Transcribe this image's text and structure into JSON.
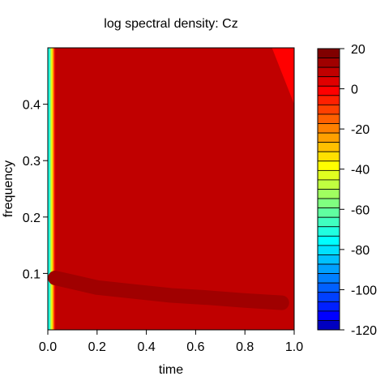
{
  "chart_data": {
    "type": "heatmap",
    "title": "log spectral density: Cz",
    "xlabel": "time",
    "ylabel": "frequency",
    "xlim": [
      0.0,
      1.0
    ],
    "ylim": [
      0.0,
      0.5
    ],
    "x_ticks": [
      0.0,
      0.2,
      0.4,
      0.6,
      0.8,
      1.0
    ],
    "x_tick_labels": [
      "0.0",
      "0.2",
      "0.4",
      "0.6",
      "0.8",
      "1.0"
    ],
    "y_ticks": [
      0.1,
      0.2,
      0.3,
      0.4
    ],
    "y_tick_labels": [
      "0.1",
      "0.2",
      "0.3",
      "0.4"
    ],
    "grid": false,
    "colorbar": {
      "placement": "right",
      "range": [
        -120,
        20
      ],
      "step": 5,
      "tick_values": [
        20,
        0,
        -20,
        -40,
        -60,
        -80,
        -100,
        -120
      ],
      "tick_labels": [
        "20",
        "0",
        "-20",
        "-40",
        "-60",
        "-80",
        "-100",
        "-120"
      ],
      "colors_top_to_bottom": [
        "#800000",
        "#a00000",
        "#c00000",
        "#e00000",
        "#ff0000",
        "#ff2000",
        "#ff4000",
        "#ff6000",
        "#ff8000",
        "#ffa000",
        "#ffc000",
        "#ffe000",
        "#ffff00",
        "#e0ff20",
        "#c0ff40",
        "#a0ff60",
        "#80ff80",
        "#60ffa0",
        "#40ffc0",
        "#20ffe0",
        "#00ffff",
        "#00e0ff",
        "#00c0ff",
        "#00a0ff",
        "#0080ff",
        "#0060ff",
        "#0040ff",
        "#0020ff",
        "#0000ff",
        "#0000c0"
      ]
    },
    "field": {
      "background_level": 5,
      "background_color": "#c00000",
      "low_time_edge": {
        "time_range": [
          0.0,
          0.03
        ],
        "colors_left_to_right": [
          "#20ffe0",
          "#00ffff",
          "#40ffc0",
          "#80ff80",
          "#c0ff40",
          "#ffff00",
          "#ffc000",
          "#ff8000",
          "#ff4000",
          "#e00000"
        ]
      },
      "ridge": {
        "level": 10,
        "color": "#a00000",
        "points": [
          {
            "time": 0.03,
            "frequency": 0.092
          },
          {
            "time": 0.1,
            "frequency": 0.085
          },
          {
            "time": 0.2,
            "frequency": 0.075
          },
          {
            "time": 0.35,
            "frequency": 0.068
          },
          {
            "time": 0.5,
            "frequency": 0.061
          },
          {
            "time": 0.65,
            "frequency": 0.057
          },
          {
            "time": 0.8,
            "frequency": 0.052
          },
          {
            "time": 0.95,
            "frequency": 0.048
          }
        ]
      },
      "corner_region": {
        "level": 0,
        "color": "#ff0000",
        "points": [
          {
            "time": 0.91,
            "frequency": 0.5
          },
          {
            "time": 1.0,
            "frequency": 0.5
          },
          {
            "time": 1.0,
            "frequency": 0.4
          }
        ]
      }
    }
  }
}
